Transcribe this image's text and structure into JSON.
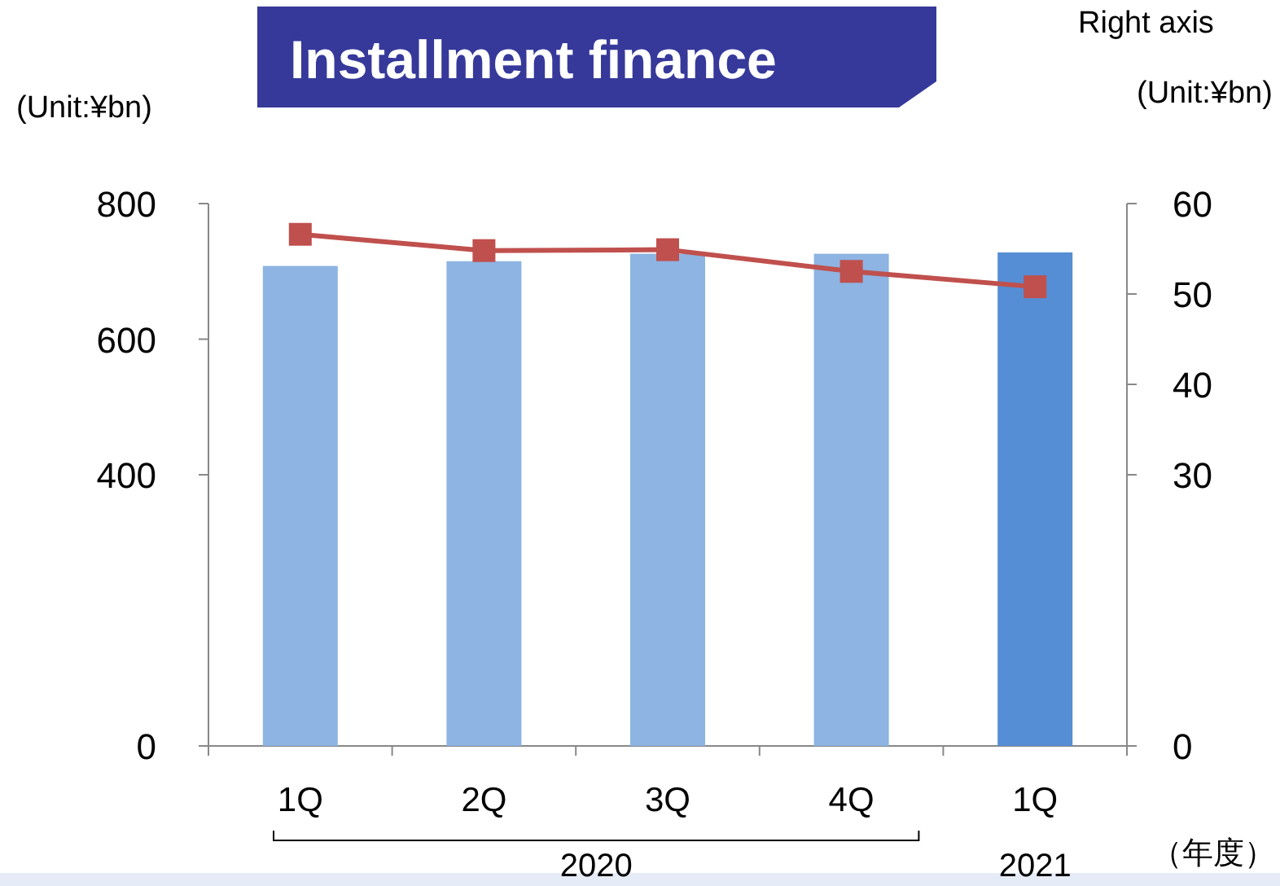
{
  "chart_data": {
    "type": "bar",
    "title": "Installment finance",
    "ylabel": "(Unit:¥bn)",
    "y2label": "(Unit:¥bn)",
    "categories": [
      "1Q",
      "2Q",
      "3Q",
      "4Q",
      "1Q"
    ],
    "series": [
      {
        "colors": [
          "#8db4e2",
          "#8db4e2",
          "#8db4e2",
          "#8db4e2",
          "#558ed5"
        ],
        "values": [
          708,
          715,
          726,
          726,
          728
        ]
      },
      {
        "type": "line",
        "axis": "y2",
        "color": "#c0504d",
        "marker": "square",
        "values": [
          56.6,
          54.8,
          54.9,
          52.5,
          50.8
        ]
      }
    ],
    "ylim": [
      0,
      800
    ],
    "yticks": [
      0,
      400,
      600,
      800
    ],
    "y2lim": [
      0,
      60
    ],
    "y2ticks": [
      0,
      30,
      40,
      50,
      60
    ],
    "annotations": [
      "2020",
      "2021",
      "（年度）",
      "Right axis"
    ]
  }
}
